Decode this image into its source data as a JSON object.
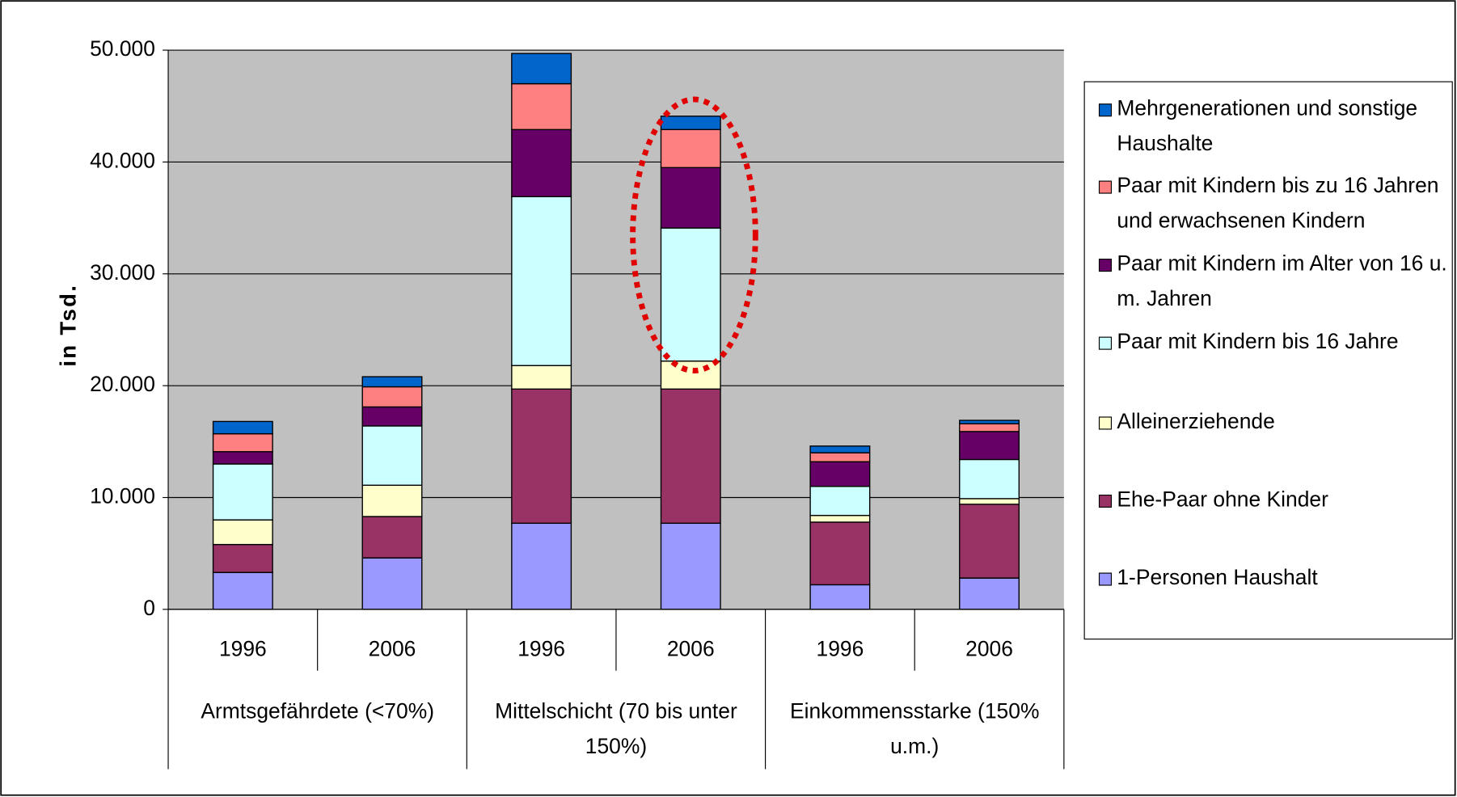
{
  "chart_data": {
    "type": "stacked_bar",
    "y_label": "in Tsd.",
    "categories": [
      "1996",
      "2006",
      "1996",
      "2006",
      "1996",
      "2006"
    ],
    "groups": [
      "Armtsgefährdete (<70%)",
      "Mittelschicht (70 bis unter 150%)",
      "Einkommensstarke (150% u.m.)"
    ],
    "series": [
      {
        "name": "1-Personen Haushalt",
        "color": "#9999ff",
        "values": [
          3300,
          4600,
          7700,
          7700,
          2200,
          2800
        ]
      },
      {
        "name": "Ehe-Paar ohne Kinder",
        "color": "#993366",
        "values": [
          2500,
          3700,
          12000,
          12000,
          5600,
          6600
        ]
      },
      {
        "name": "Alleinerziehende",
        "color": "#ffffcc",
        "values": [
          2200,
          2800,
          2100,
          2500,
          600,
          500
        ]
      },
      {
        "name": "Paar mit Kindern bis 16 Jahre",
        "color": "#ccffff",
        "values": [
          5000,
          5300,
          15100,
          11900,
          2600,
          3500
        ]
      },
      {
        "name": "Paar mit Kindern im Alter von 16 u. m. Jahren",
        "color": "#660066",
        "values": [
          1100,
          1700,
          6000,
          5400,
          2200,
          2500
        ]
      },
      {
        "name": "Paar mit Kindern bis zu 16 Jahren und erwachsenen Kindern",
        "color": "#ff8080",
        "values": [
          1600,
          1800,
          4100,
          3400,
          800,
          700
        ]
      },
      {
        "name": "Mehrgenerationen und sonstige Haushalte",
        "color": "#0066cc",
        "values": [
          1100,
          900,
          2700,
          1200,
          600,
          300
        ]
      }
    ],
    "ylim": [
      0,
      50000
    ],
    "yticks": [
      0,
      {
        "value": 10000,
        "label": "10.000"
      },
      {
        "value": 20000,
        "label": "20.000"
      },
      {
        "value": 30000,
        "label": "30.000"
      },
      {
        "value": 40000,
        "label": "40.000"
      },
      {
        "value": 50000,
        "label": "50.000"
      }
    ],
    "grid": true,
    "plot_color": "#c0c0c0",
    "legend": "right"
  }
}
